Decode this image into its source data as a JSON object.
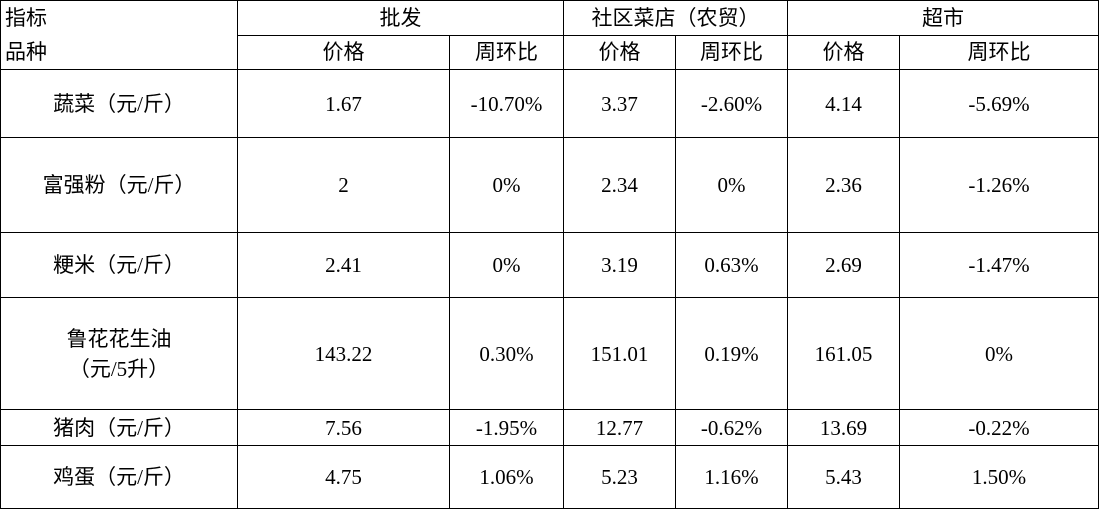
{
  "header": {
    "indicator": "指标",
    "variety": "品种",
    "groups": [
      "批发",
      "社区菜店（农贸）",
      "超市"
    ],
    "subheaders": [
      "价格",
      "周环比",
      "价格",
      "周环比",
      "价格",
      "周环比"
    ]
  },
  "table": {
    "rows": [
      {
        "name": [
          "蔬菜（元/斤）"
        ],
        "values": [
          "1.67",
          "-10.70%",
          "3.37",
          "-2.60%",
          "4.14",
          "-5.69%"
        ]
      },
      {
        "name": [
          "富强粉（元/斤）"
        ],
        "values": [
          "2",
          "0%",
          "2.34",
          "0%",
          "2.36",
          "-1.26%"
        ]
      },
      {
        "name": [
          "粳米（元/斤）"
        ],
        "values": [
          "2.41",
          "0%",
          "3.19",
          "0.63%",
          "2.69",
          "-1.47%"
        ]
      },
      {
        "name": [
          "鲁花花生油",
          "（元/5升）"
        ],
        "values": [
          "143.22",
          "0.30%",
          "151.01",
          "0.19%",
          "161.05",
          "0%"
        ]
      },
      {
        "name": [
          "猪肉（元/斤）"
        ],
        "values": [
          "7.56",
          "-1.95%",
          "12.77",
          "-0.62%",
          "13.69",
          "-0.22%"
        ]
      },
      {
        "name": [
          "鸡蛋（元/斤）"
        ],
        "values": [
          "4.75",
          "1.06%",
          "5.23",
          "1.16%",
          "5.43",
          "1.50%"
        ]
      }
    ]
  }
}
